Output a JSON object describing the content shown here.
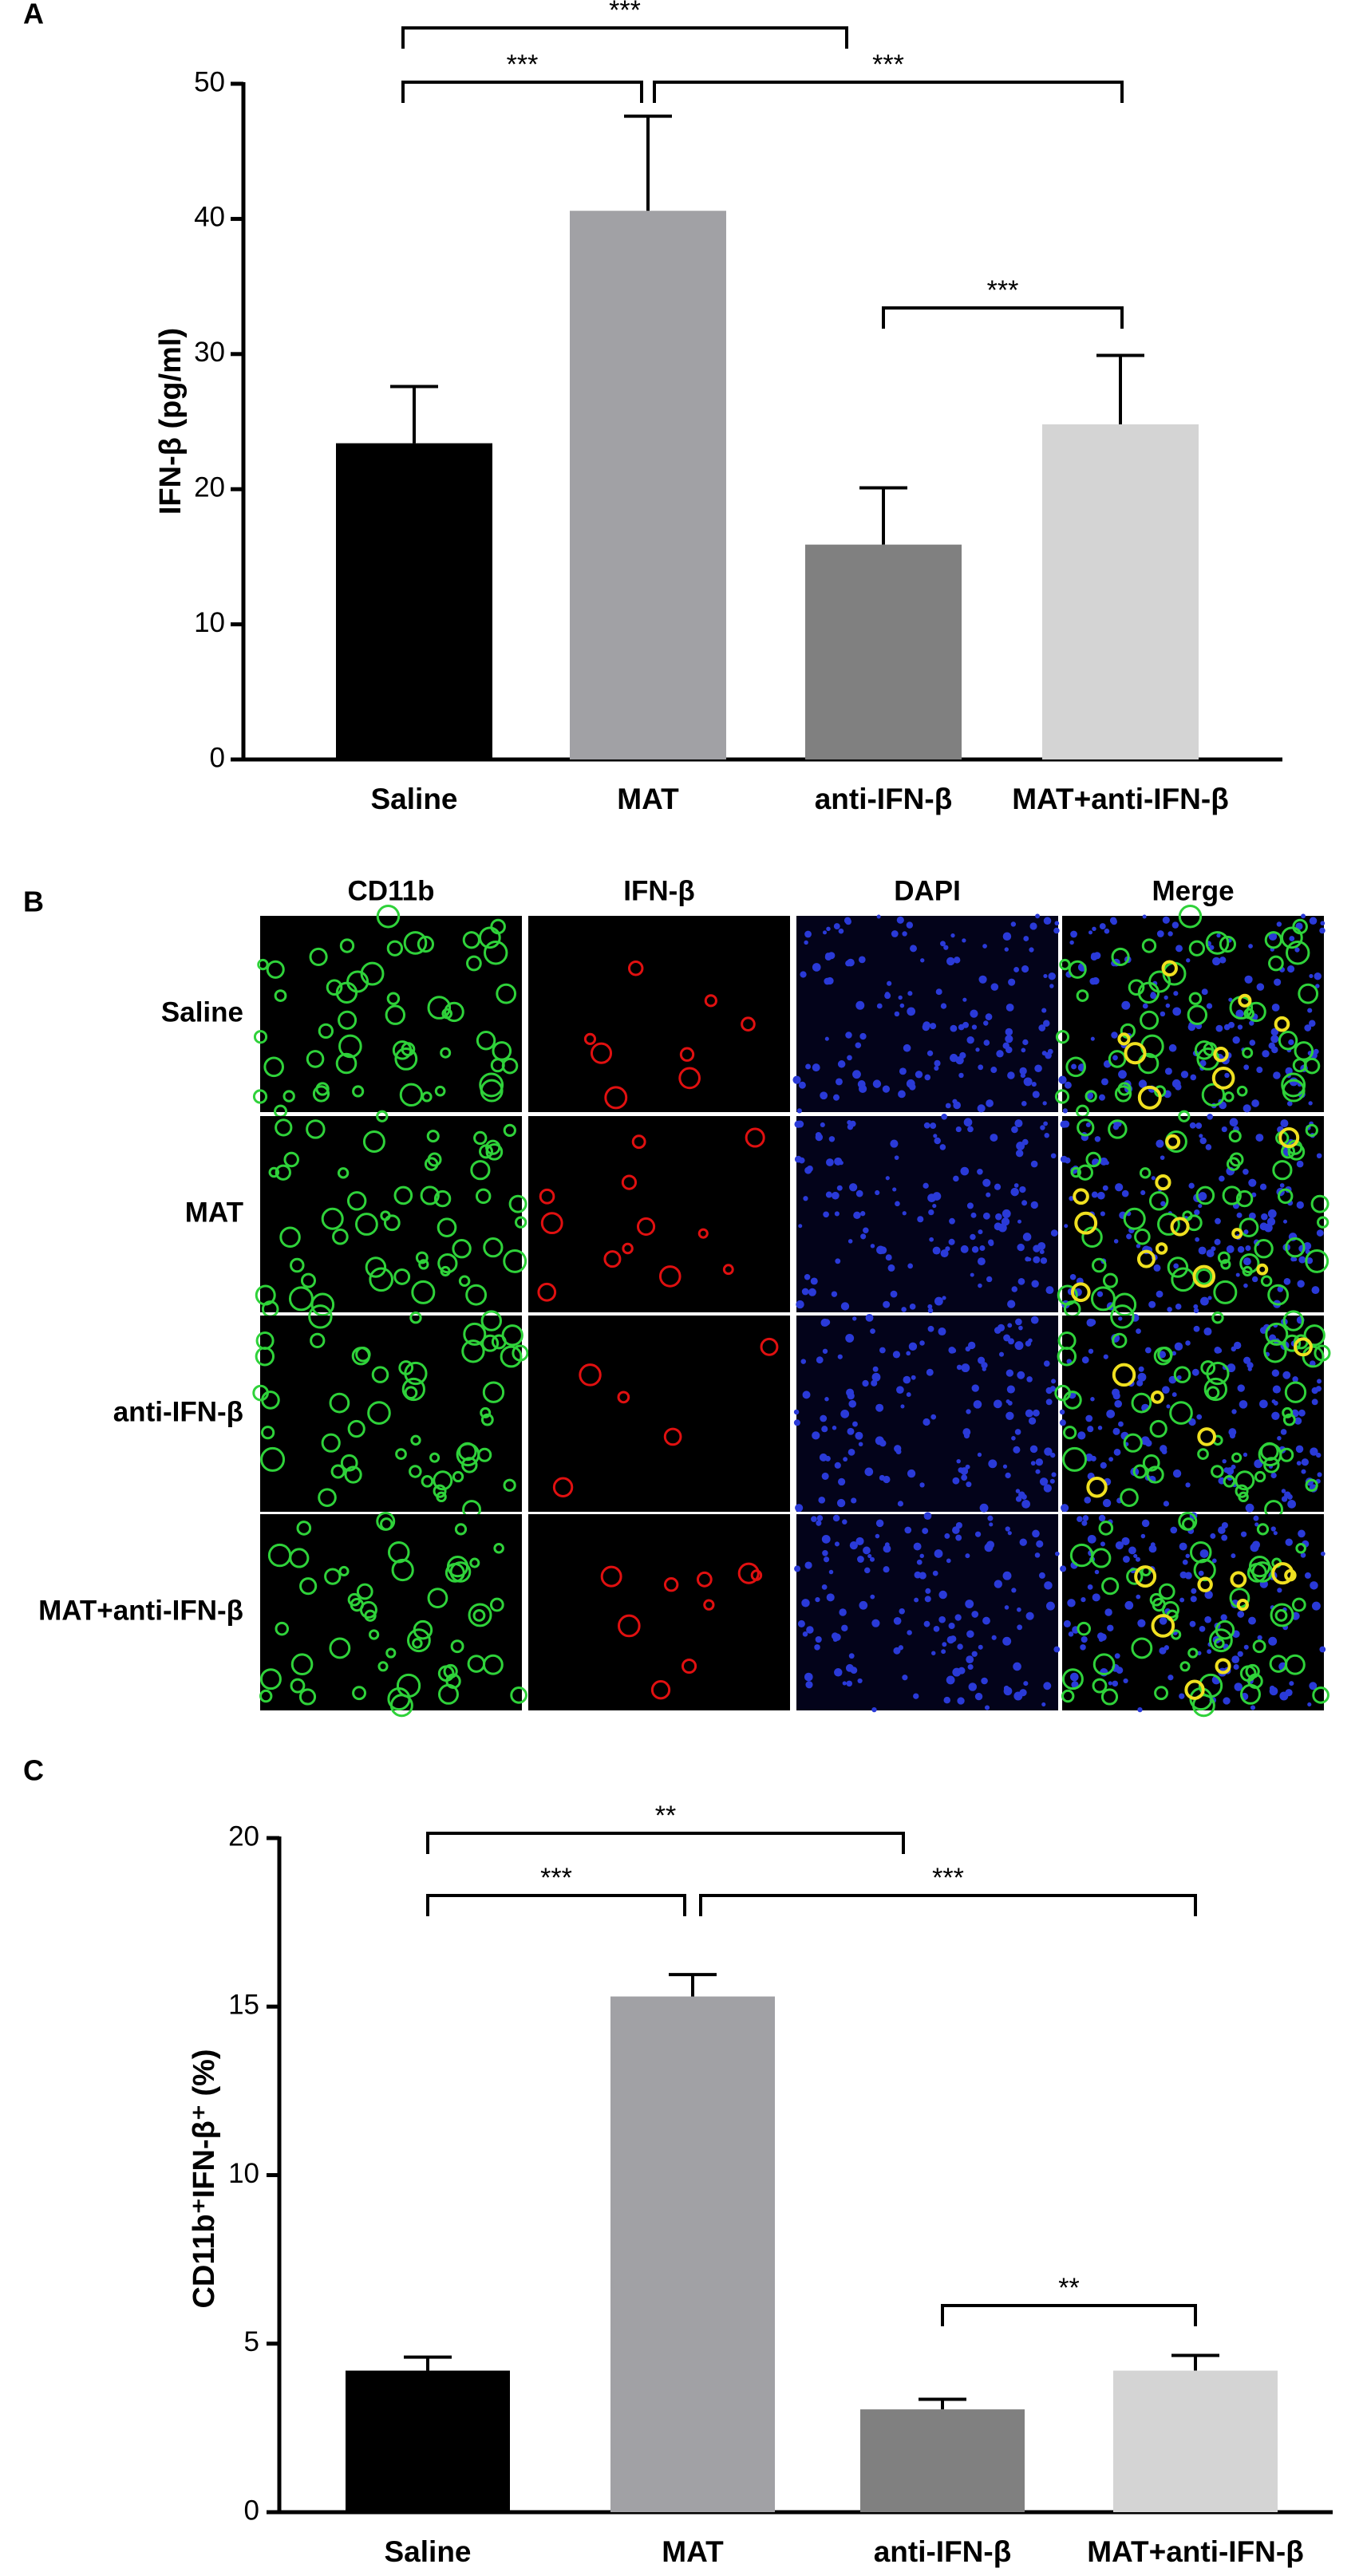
{
  "panel_labels": [
    "A",
    "B",
    "C"
  ],
  "chart_data": [
    {
      "type": "bar",
      "y_label": "IFN-β (pg/ml)",
      "categories": [
        "Saline",
        "MAT",
        "anti-IFN-β",
        "MAT+anti-IFN-β"
      ],
      "values": [
        23.4,
        40.6,
        15.9,
        24.8
      ],
      "errors": [
        4.2,
        7.0,
        4.2,
        5.1
      ],
      "colors": [
        "#000000",
        "#a1a1a5",
        "#808080",
        "#d4d4d4"
      ],
      "ylim": [
        0,
        50
      ],
      "yticks": [
        0,
        10,
        20,
        30,
        40,
        50
      ],
      "annotations": [
        "***",
        "***",
        "***",
        "***"
      ]
    },
    {
      "type": "bar",
      "y_label": "CD11b⁺IFN-β⁺ (%)",
      "categories": [
        "Saline",
        "MAT",
        "anti-IFN-β",
        "MAT+anti-IFN-β"
      ],
      "values": [
        4.2,
        15.3,
        3.05,
        4.2
      ],
      "errors": [
        0.4,
        0.65,
        0.3,
        0.45
      ],
      "colors": [
        "#000000",
        "#a1a1a5",
        "#808080",
        "#d4d4d4"
      ],
      "ylim": [
        0,
        20
      ],
      "yticks": [
        0,
        5,
        10,
        15,
        20
      ],
      "annotations": [
        "**",
        "***",
        "***",
        "**"
      ]
    }
  ],
  "image_grid": {
    "columns": [
      "CD11b",
      "IFN-β",
      "DAPI",
      "Merge"
    ],
    "rows": [
      "Saline",
      "MAT",
      "anti-IFN-β",
      "MAT+anti-IFN-β"
    ]
  }
}
